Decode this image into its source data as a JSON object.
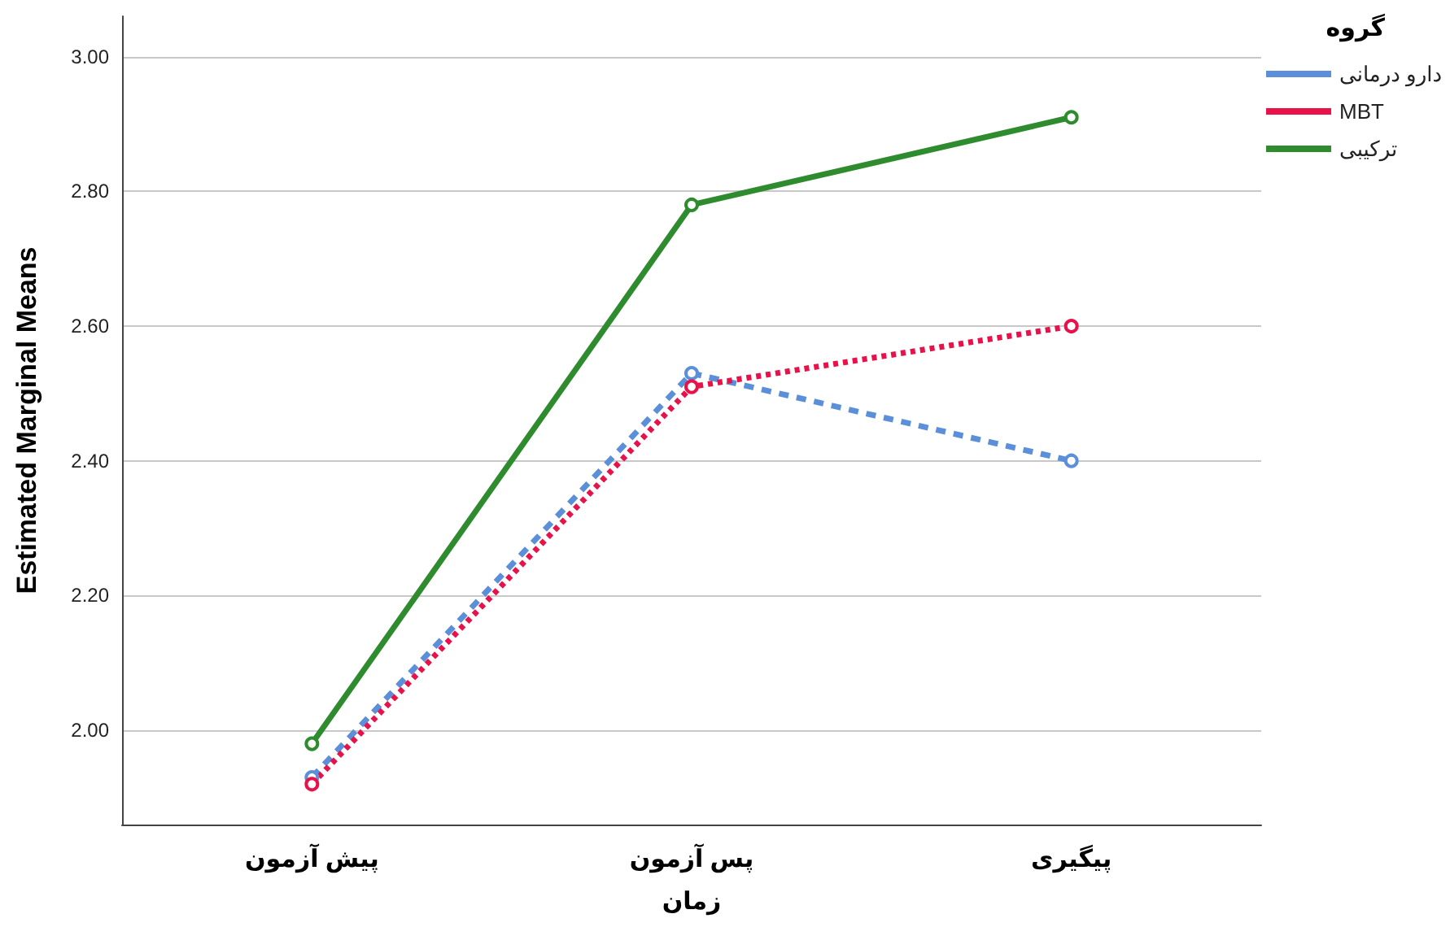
{
  "chart_data": {
    "type": "line",
    "xlabel": "زمان",
    "ylabel": "Estimated Marginal Means",
    "legend_title": "گروه",
    "categories": [
      "پیش آزمون",
      "پس آزمون",
      "پیگیری"
    ],
    "series": [
      {
        "name": "دارو درمانی",
        "color": "#5b8fd9",
        "values": [
          1.93,
          2.53,
          2.4
        ],
        "line_style": "dashed"
      },
      {
        "name": "MBT",
        "color": "#e8114a",
        "values": [
          1.92,
          2.51,
          2.6
        ],
        "line_style": "dotted"
      },
      {
        "name": "ترکیبی",
        "color": "#2e8b2e",
        "values": [
          1.98,
          2.78,
          2.91
        ],
        "line_style": "solid"
      }
    ],
    "ylim": [
      1.86,
      3.06
    ],
    "yticks": [
      {
        "value": 2,
        "label": "2.00"
      },
      {
        "value": 2.2,
        "label": "2.20"
      },
      {
        "value": 2.4,
        "label": "2.40"
      },
      {
        "value": 2.6,
        "label": "2.60"
      },
      {
        "value": 2.8,
        "label": "2.80"
      },
      {
        "value": 3,
        "label": "3.00"
      }
    ],
    "grid": "y",
    "legend": "top right",
    "marker": "circle"
  }
}
